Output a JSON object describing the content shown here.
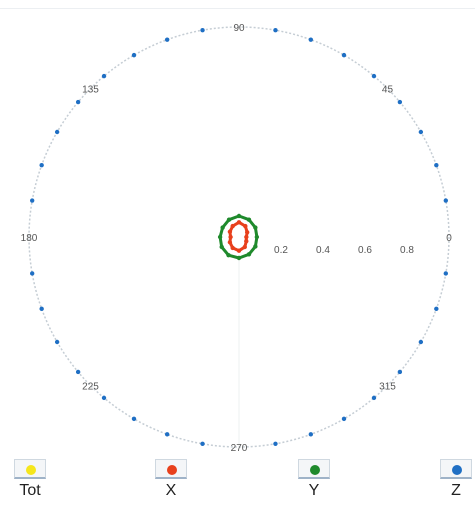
{
  "chart_data": {
    "type": "polar",
    "angle_ticks": [
      {
        "deg": 90,
        "label": "90"
      },
      {
        "deg": 45,
        "label": "45"
      },
      {
        "deg": 135,
        "label": "135"
      },
      {
        "deg": 180,
        "label": "180"
      },
      {
        "deg": 0,
        "label": "0"
      },
      {
        "deg": 225,
        "label": "225"
      },
      {
        "deg": 270,
        "label": "270"
      },
      {
        "deg": 315,
        "label": "315"
      }
    ],
    "radial_ticks": [
      {
        "value": 0.2,
        "label": "0.2"
      },
      {
        "value": 0.4,
        "label": "0.4"
      },
      {
        "value": 0.6,
        "label": "0.6"
      },
      {
        "value": 0.8,
        "label": "0.8"
      }
    ],
    "rlim": [
      0,
      1
    ],
    "series": [
      {
        "name": "Tot",
        "color": "#f5e61c",
        "r": []
      },
      {
        "name": "X",
        "color": "#e8401c",
        "angle_deg": [
          0,
          30,
          60,
          90,
          120,
          150,
          180,
          210,
          240,
          270,
          300,
          330
        ],
        "r": [
          0.035,
          0.045,
          0.06,
          0.07,
          0.06,
          0.05,
          0.04,
          0.05,
          0.06,
          0.065,
          0.055,
          0.04
        ]
      },
      {
        "name": "Y",
        "color": "#1f8a2c",
        "angle_deg": [
          0,
          30,
          60,
          90,
          120,
          150,
          180,
          210,
          240,
          270,
          300,
          330
        ],
        "r": [
          0.085,
          0.09,
          0.095,
          0.1,
          0.095,
          0.09,
          0.09,
          0.095,
          0.1,
          0.1,
          0.095,
          0.09
        ]
      },
      {
        "name": "Z",
        "color": "#1f6fc4",
        "r": []
      }
    ],
    "outer_circle_color": "#c5cdd4",
    "outer_marker_color": "#1f6fc4",
    "grid": false,
    "legend_position": "bottom"
  },
  "legend": [
    {
      "label": "Tot",
      "color": "#f5e61c"
    },
    {
      "label": "X",
      "color": "#e8401c"
    },
    {
      "label": "Y",
      "color": "#1f8a2c"
    },
    {
      "label": "Z",
      "color": "#1f6fc4"
    }
  ]
}
